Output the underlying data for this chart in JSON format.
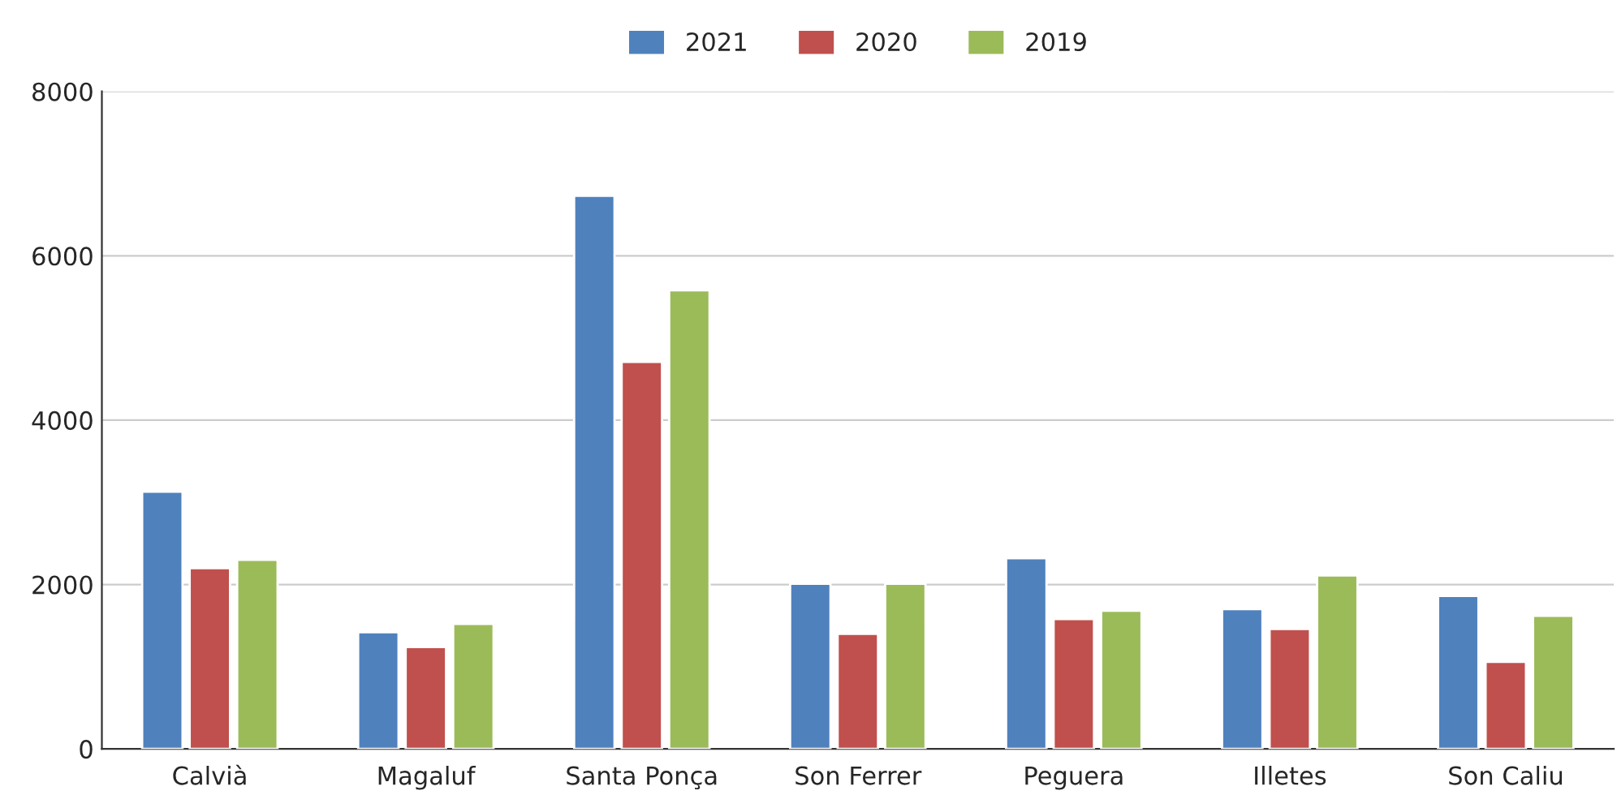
{
  "chart_data": {
    "type": "bar",
    "categories": [
      "Calvià",
      "Magaluf",
      "Santa Ponça",
      "Son Ferrer",
      "Peguera",
      "Illetes",
      "Son Caliu"
    ],
    "series": [
      {
        "name": "2021",
        "color": "#4f81bd",
        "values": [
          3130,
          1420,
          6730,
          2010,
          2320,
          1700,
          1860
        ]
      },
      {
        "name": "2020",
        "color": "#c0504d",
        "values": [
          2200,
          1240,
          4710,
          1400,
          1580,
          1460,
          1060
        ]
      },
      {
        "name": "2019",
        "color": "#9bbb59",
        "values": [
          2300,
          1520,
          5580,
          2010,
          1680,
          2110,
          1620
        ]
      }
    ],
    "ylim": [
      0,
      8000
    ],
    "yticks": [
      0,
      2000,
      4000,
      6000,
      8000
    ],
    "grid": "y",
    "legend": "top"
  }
}
